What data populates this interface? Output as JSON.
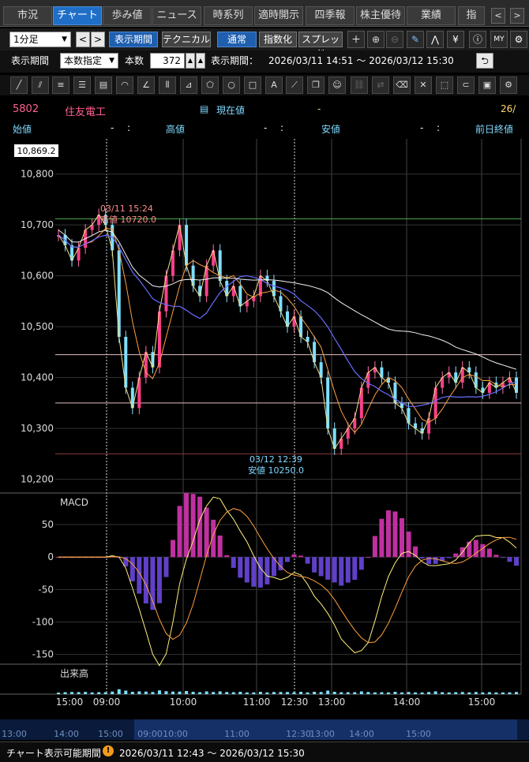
{
  "tabs": [
    {
      "label": "市況"
    },
    {
      "label": "チャート"
    },
    {
      "label": "歩み値"
    },
    {
      "label": "ニュース"
    },
    {
      "label": "時系列"
    },
    {
      "label": "適時開示"
    },
    {
      "label": "四季報"
    },
    {
      "label": "株主優待"
    },
    {
      "label": "業績"
    },
    {
      "label": "指"
    }
  ],
  "toolbar": {
    "interval": "1分足",
    "period_button": "表示期間",
    "technical_button": "テクニカル",
    "normal_button": "通常",
    "index_button": "指数化",
    "spread_button": "スプレッド"
  },
  "period_row": {
    "label": "表示期間",
    "mode": "本数指定",
    "count_label": "本数",
    "count_value": "372",
    "range_label": "表示期間：",
    "range_value": "2026/03/11 14:51 〜 2026/03/12 15:30"
  },
  "stock": {
    "code": "5802",
    "name": "住友電工",
    "current_label": "現在値",
    "current_value": "-",
    "date": "26/",
    "open_label": "始値",
    "open_value": "-",
    "open_time": ":",
    "high_label": "高値",
    "high_value": "-",
    "high_time": ":",
    "low_label": "安値",
    "low_value": "-",
    "low_time": ":",
    "prev_close_label": "前日終値"
  },
  "chart_data": {
    "type": "line",
    "price_axis": [
      "10,800",
      "10,700",
      "10,600",
      "10,500",
      "10,400",
      "10,300",
      "10,200"
    ],
    "price_values": [
      10800,
      10700,
      10600,
      10500,
      10400,
      10300,
      10200
    ],
    "cursor_price": "10,869.2",
    "high_annotation": {
      "time": "03/11 15:24",
      "label": "高値 10720.0"
    },
    "low_annotation": {
      "time": "03/12 12:39",
      "label": "安値 10250.0"
    },
    "macd_label": "MACD",
    "macd_axis": [
      "50",
      "0",
      "-50",
      "-100",
      "-150"
    ],
    "macd_values": [
      50,
      0,
      -50,
      -100,
      -150
    ],
    "volume_label": "出来高",
    "time_axis": [
      "15:00",
      "09:00",
      "10:00",
      "11:00",
      "12:30",
      "13:00",
      "14:00",
      "15:00"
    ],
    "overview_axis": [
      "13:00",
      "14:00",
      "15:00",
      "09:00",
      "10:00",
      "11:00",
      "12:30",
      "13:00",
      "14:00",
      "15:00"
    ],
    "horizontal_lines": [
      {
        "value": 10712,
        "color": "#4caf50"
      },
      {
        "value": 10445,
        "color": "#e0c0c0"
      },
      {
        "value": 10350,
        "color": "#e0c0c0"
      },
      {
        "value": 10250,
        "color": "#8b3a3a"
      }
    ],
    "price_series": [
      10680,
      10660,
      10630,
      10655,
      10690,
      10700,
      10720,
      10700,
      10650,
      10480,
      10380,
      10340,
      10400,
      10450,
      10420,
      10530,
      10600,
      10650,
      10700,
      10620,
      10580,
      10560,
      10620,
      10650,
      10590,
      10560,
      10580,
      10540,
      10550,
      10560,
      10600,
      10590,
      10560,
      10530,
      10500,
      10520,
      10480,
      10470,
      10430,
      10400,
      10300,
      10260,
      10280,
      10300,
      10320,
      10380,
      10410,
      10420,
      10400,
      10390,
      10350,
      10340,
      10310,
      10300,
      10290,
      10320,
      10380,
      10400,
      10410,
      10390,
      10420,
      10410,
      10380,
      10370,
      10390,
      10380,
      10390,
      10400,
      10370
    ]
  },
  "footer": {
    "label": "チャート表示可能期間",
    "range": "2026/03/11 12:43 〜 2026/03/12 15:30"
  }
}
